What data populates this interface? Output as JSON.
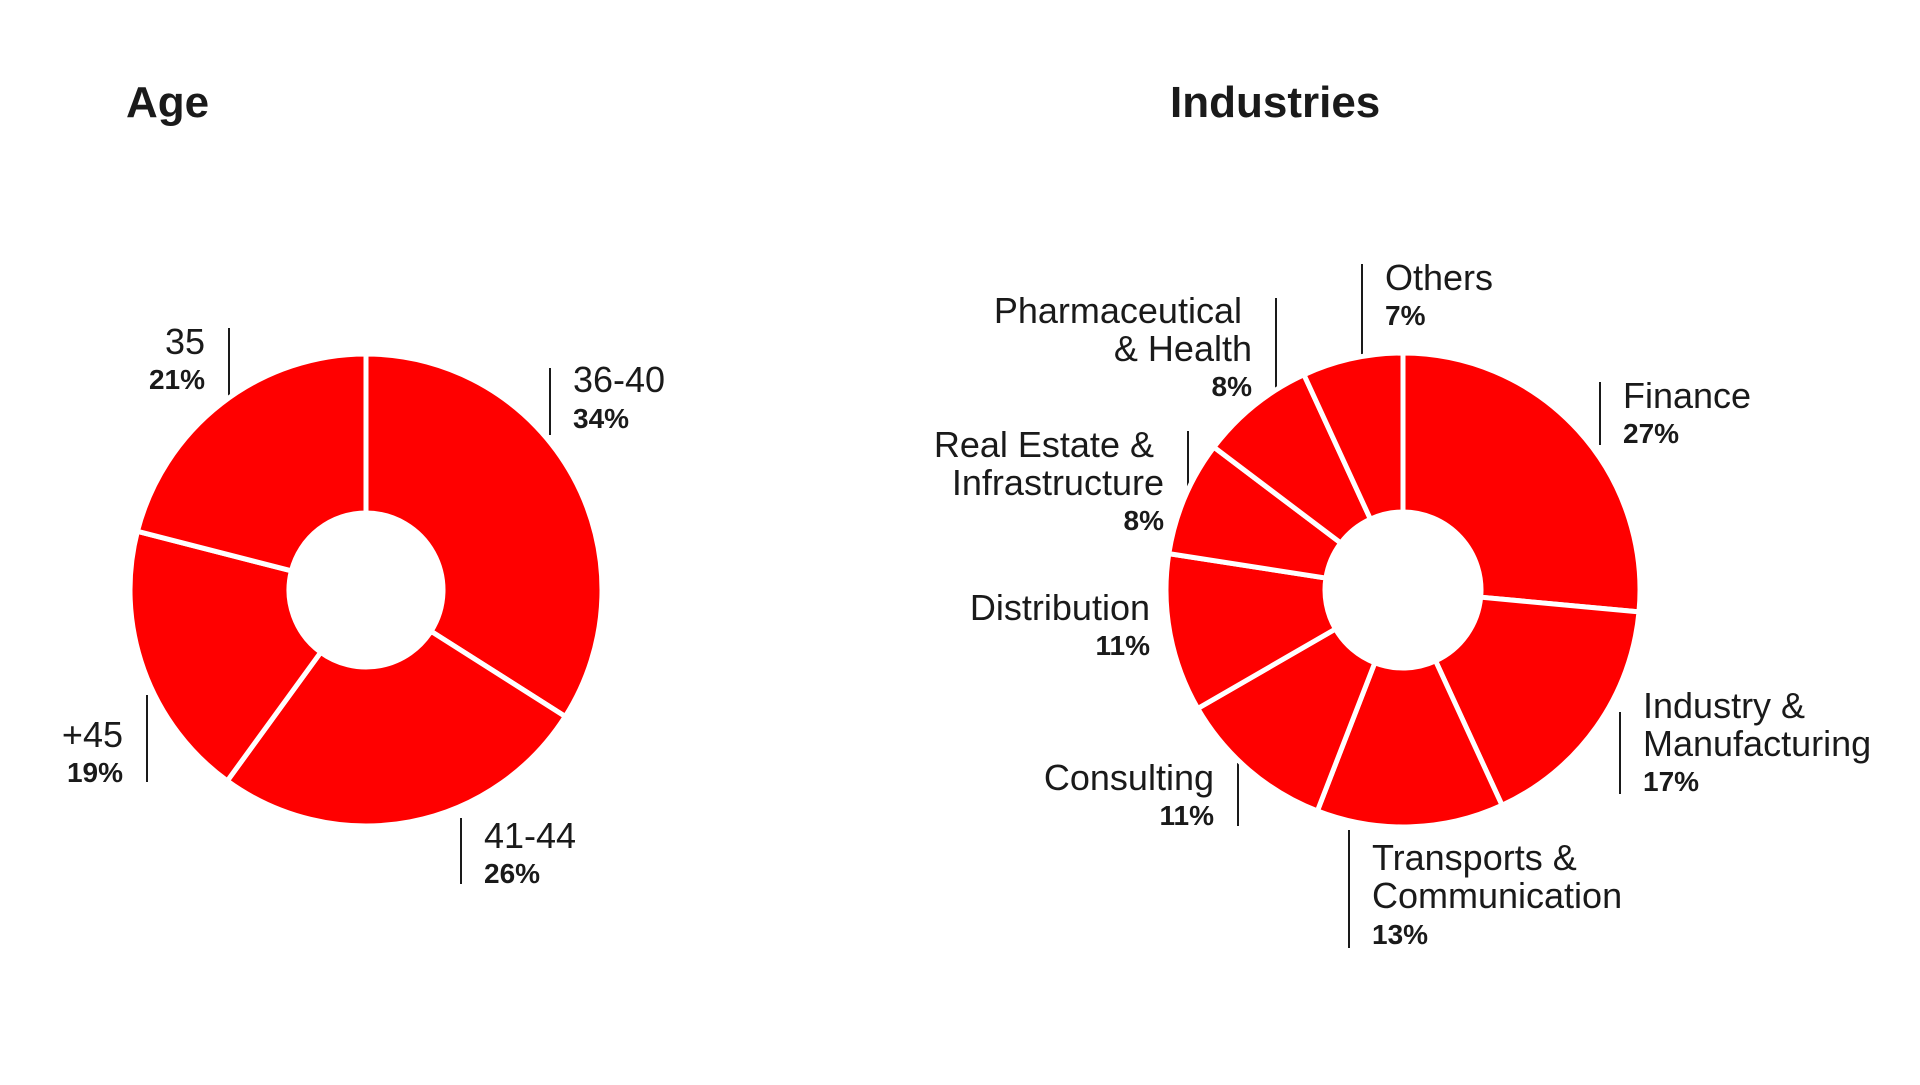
{
  "chart_data": [
    {
      "type": "pie",
      "variant": "donut",
      "title": "Age",
      "color": "#ff0000",
      "categories": [
        "36-40",
        "41-44",
        "+45",
        "35"
      ],
      "values": [
        34,
        26,
        19,
        21
      ],
      "value_labels": [
        "34%",
        "26%",
        "19%",
        "21%"
      ]
    },
    {
      "type": "pie",
      "variant": "donut",
      "title": "Industries",
      "color": "#ff0000",
      "categories": [
        "Finance",
        "Industry & Manufacturing",
        "Transports & Communication",
        "Consulting",
        "Distribution",
        "Real Estate & Infrastructure",
        "Pharmaceutical & Health",
        "Others"
      ],
      "values": [
        27,
        17,
        13,
        11,
        11,
        8,
        8,
        7
      ],
      "value_labels": [
        "27%",
        "17%",
        "13%",
        "11%",
        "11%",
        "8%",
        "8%",
        "7%"
      ]
    }
  ]
}
